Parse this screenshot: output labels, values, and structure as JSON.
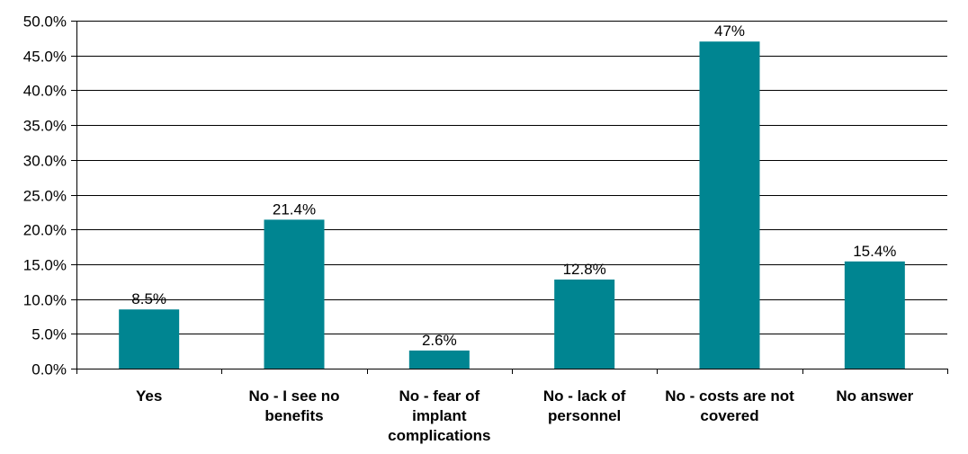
{
  "chart_data": {
    "type": "bar",
    "title": "",
    "xlabel": "",
    "ylabel": "",
    "ylim": [
      0,
      50
    ],
    "y_tick_values": [
      0,
      5,
      10,
      15,
      20,
      25,
      30,
      35,
      40,
      45,
      50
    ],
    "y_tick_labels": [
      "0.0%",
      "5.0%",
      "10.0%",
      "15.0%",
      "20.0%",
      "25.0%",
      "30.0%",
      "35.0%",
      "40.0%",
      "45.0%",
      "50.0%"
    ],
    "grid": true,
    "categories": [
      [
        "Yes"
      ],
      [
        "No - I see no",
        "benefits"
      ],
      [
        "No - fear of",
        "implant",
        "complications"
      ],
      [
        "No - lack of",
        "personnel"
      ],
      [
        "No - costs are not",
        "covered"
      ],
      [
        "No answer"
      ]
    ],
    "values": [
      8.5,
      21.4,
      2.6,
      12.8,
      47,
      15.4
    ],
    "data_labels": [
      "8.5%",
      "21.4%",
      "2.6%",
      "12.8%",
      "47%",
      "15.4%"
    ],
    "colors": {
      "bar": "#008591",
      "grid": "#000000",
      "axis": "#000000",
      "text": "#000000"
    }
  }
}
